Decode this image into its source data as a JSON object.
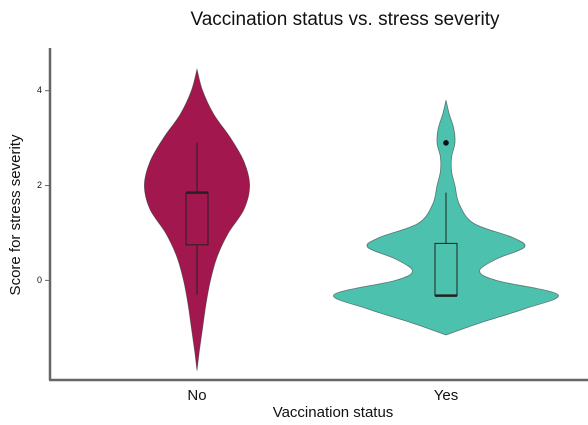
{
  "chart_data": {
    "type": "violin",
    "title": "Vaccination status vs. stress severity",
    "xlabel": "Vaccination status",
    "ylabel": "Score for stress severity",
    "ylim": [
      -2.1,
      4.9
    ],
    "yticks": [
      0,
      2,
      4
    ],
    "categories": [
      "No",
      "Yes"
    ],
    "series": [
      {
        "name": "No",
        "color": "#a3174f",
        "box": {
          "min": -0.3,
          "q1": 0.75,
          "median": 1.85,
          "q3": 1.85,
          "max": 2.9
        },
        "outliers": [],
        "density": {
          "y": [
            4.45,
            4.0,
            3.5,
            3.0,
            2.5,
            2.0,
            1.5,
            1.0,
            0.5,
            0,
            -0.5,
            -1.0,
            -1.5,
            -1.9
          ],
          "width": [
            0,
            0.05,
            0.15,
            0.3,
            0.42,
            0.47,
            0.42,
            0.28,
            0.18,
            0.12,
            0.08,
            0.05,
            0.02,
            0
          ]
        }
      },
      {
        "name": "Yes",
        "color": "#4cc2ae",
        "box": {
          "min": -0.32,
          "q1": -0.32,
          "median": -0.32,
          "q3": 0.78,
          "max": 1.85
        },
        "outliers": [
          2.9
        ],
        "density": {
          "y": [
            3.8,
            3.5,
            3.2,
            2.9,
            2.6,
            2.3,
            2.0,
            1.6,
            1.2,
            0.9,
            0.7,
            0.45,
            0.2,
            0.0,
            -0.3,
            -0.6,
            -0.9,
            -1.15
          ],
          "width": [
            0,
            0.03,
            0.07,
            0.08,
            0.05,
            0.05,
            0.08,
            0.12,
            0.25,
            0.6,
            0.7,
            0.45,
            0.3,
            0.45,
            1.0,
            0.7,
            0.3,
            0
          ]
        }
      }
    ]
  }
}
